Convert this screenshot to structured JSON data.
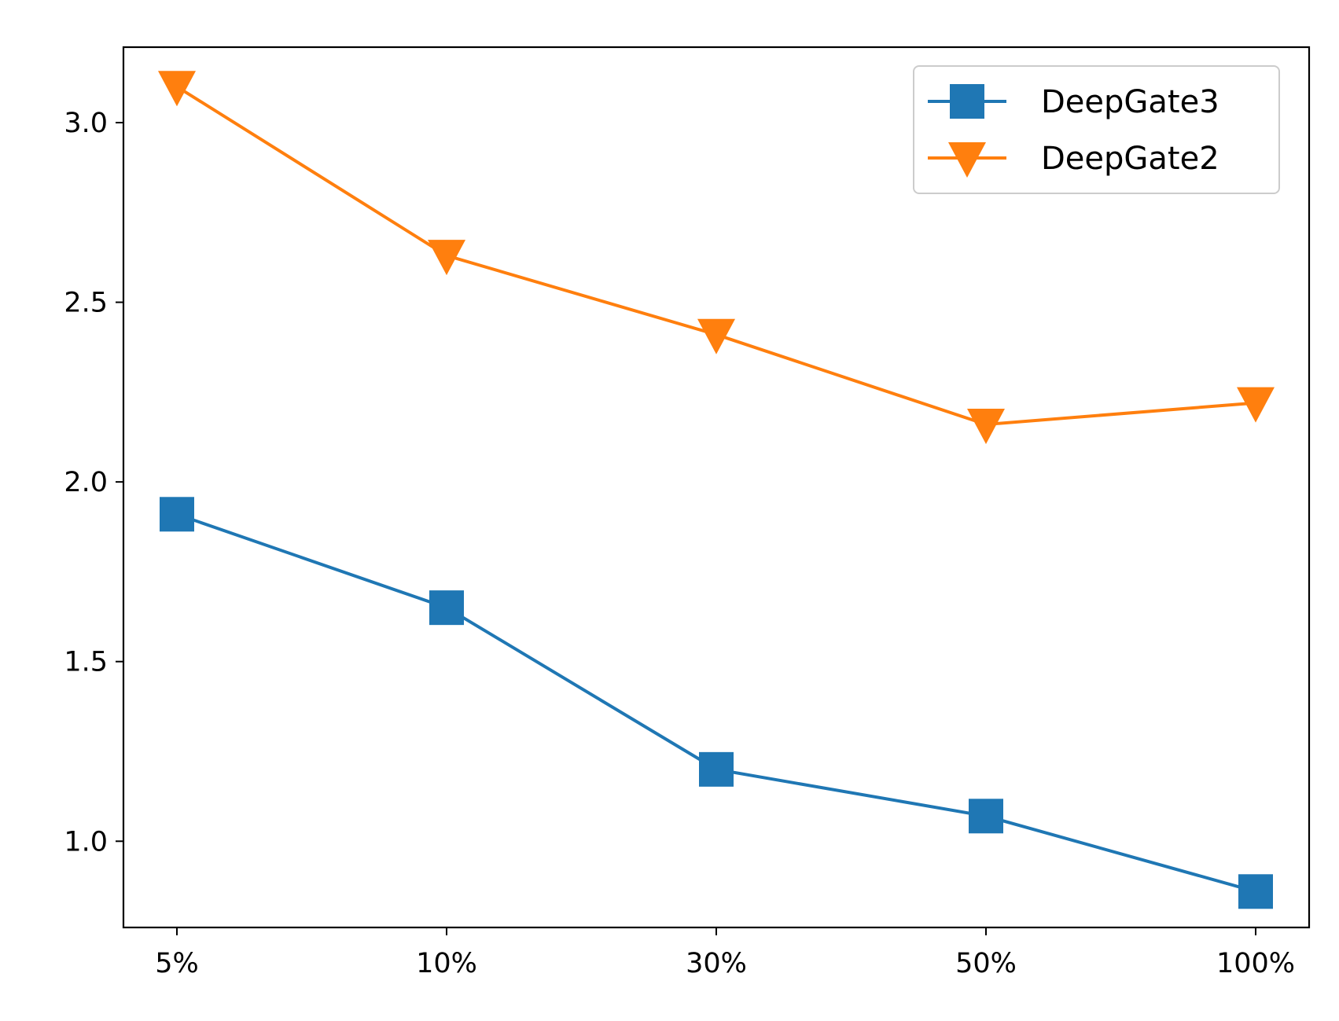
{
  "chart_data": {
    "type": "line",
    "categories": [
      "5%",
      "10%",
      "30%",
      "50%",
      "100%"
    ],
    "series": [
      {
        "name": "DeepGate3",
        "values": [
          1.91,
          1.65,
          1.2,
          1.07,
          0.86
        ],
        "color": "#1f77b4",
        "marker": "square"
      },
      {
        "name": "DeepGate2",
        "values": [
          3.1,
          2.63,
          2.41,
          2.16,
          2.22
        ],
        "color": "#ff7f0e",
        "marker": "triangle-down"
      }
    ],
    "title": "",
    "xlabel": "",
    "ylabel": "",
    "ylim": [
      0.76,
      3.21
    ],
    "yticks": [
      1.0,
      1.5,
      2.0,
      2.5,
      3.0
    ],
    "ytick_labels": [
      "1.0",
      "1.5",
      "2.0",
      "2.5",
      "3.0"
    ],
    "grid": false,
    "legend": "top-right"
  }
}
